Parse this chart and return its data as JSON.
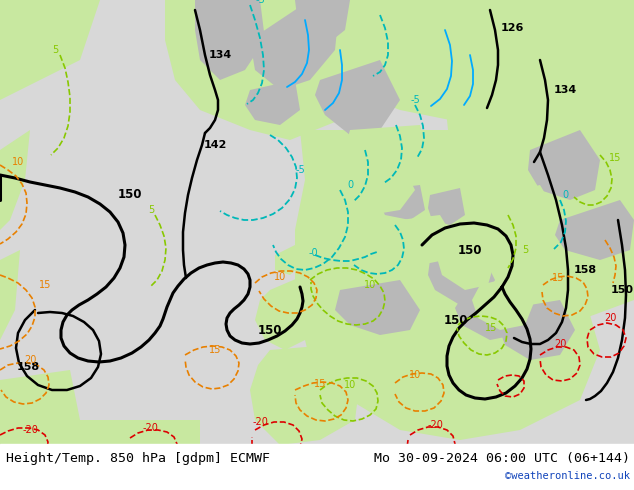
{
  "title_left": "Height/Temp. 850 hPa [gdpm] ECMWF",
  "title_right": "Mo 30-09-2024 06:00 UTC (06+144)",
  "credit": "©weatheronline.co.uk",
  "bg_ocean": "#d8d8d8",
  "land_green": "#c8e8a0",
  "land_gray": "#b8b8b8",
  "land_green2": "#a8d890",
  "c_black": "#000000",
  "c_cyan": "#00b8b8",
  "c_blue": "#00aaff",
  "c_green": "#88c800",
  "c_orange": "#e88000",
  "c_red": "#dd0000",
  "c_text": "#000000",
  "c_credit": "#1144bb",
  "c_bar": "#ffffff",
  "fs_title": 9.5,
  "fs_label": 7,
  "fs_credit": 7.5
}
